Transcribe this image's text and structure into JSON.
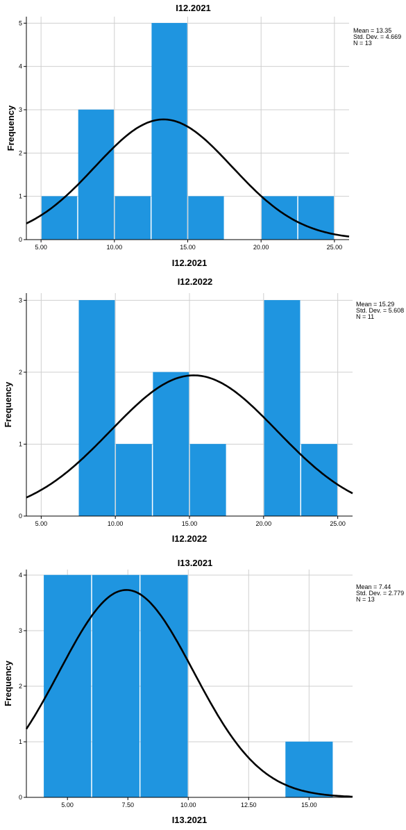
{
  "chart_data": [
    {
      "type": "bar",
      "title": "I12.2021",
      "xlabel": "I12.2021",
      "ylabel": "Frequency",
      "xlim": [
        4.0,
        26.0
      ],
      "ylim": [
        0,
        5.15
      ],
      "xticks": [
        5,
        10,
        15,
        20,
        25
      ],
      "xtick_labels": [
        "5.00",
        "10.00",
        "15.00",
        "20.00",
        "25.00"
      ],
      "yticks": [
        0,
        1,
        2,
        3,
        4,
        5
      ],
      "ytick_labels": [
        "0",
        "1",
        "2",
        "3",
        "4",
        "5"
      ],
      "bin_width": 2.5,
      "bins": [
        {
          "start": 5.0,
          "end": 7.5,
          "count": 1
        },
        {
          "start": 7.5,
          "end": 10.0,
          "count": 3
        },
        {
          "start": 10.0,
          "end": 12.5,
          "count": 1
        },
        {
          "start": 12.5,
          "end": 15.0,
          "count": 5
        },
        {
          "start": 15.0,
          "end": 17.5,
          "count": 1
        },
        {
          "start": 17.5,
          "end": 20.0,
          "count": 0
        },
        {
          "start": 20.0,
          "end": 22.5,
          "count": 1
        },
        {
          "start": 22.5,
          "end": 25.0,
          "count": 1
        }
      ],
      "normal_curve": {
        "mean": 13.35,
        "sd": 4.669,
        "n": 13
      },
      "stats_labels": [
        "Mean = 13.35",
        "Std. Dev. = 4.669",
        "N = 13"
      ],
      "grid": true,
      "bar_color": "#1f95e0"
    },
    {
      "type": "bar",
      "title": "I12.2022",
      "xlabel": "I12.2022",
      "ylabel": "Frequency",
      "xlim": [
        4.0,
        26.0
      ],
      "ylim": [
        0,
        3.1
      ],
      "xticks": [
        5,
        10,
        15,
        20,
        25
      ],
      "xtick_labels": [
        "5.00",
        "10.00",
        "15.00",
        "20.00",
        "25.00"
      ],
      "yticks": [
        0,
        1,
        2,
        3
      ],
      "ytick_labels": [
        "0",
        "1",
        "2",
        "3"
      ],
      "bin_width": 2.5,
      "bins": [
        {
          "start": 7.5,
          "end": 10.0,
          "count": 3
        },
        {
          "start": 10.0,
          "end": 12.5,
          "count": 1
        },
        {
          "start": 12.5,
          "end": 15.0,
          "count": 2
        },
        {
          "start": 15.0,
          "end": 17.5,
          "count": 1
        },
        {
          "start": 17.5,
          "end": 20.0,
          "count": 0
        },
        {
          "start": 20.0,
          "end": 22.5,
          "count": 3
        },
        {
          "start": 22.5,
          "end": 25.0,
          "count": 1
        }
      ],
      "normal_curve": {
        "mean": 15.29,
        "sd": 5.608,
        "n": 11
      },
      "stats_labels": [
        "Mean = 15.29",
        "Std. Dev. = 5.608",
        "N = 11"
      ],
      "grid": true,
      "bar_color": "#1f95e0"
    },
    {
      "type": "bar",
      "title": "I13.2021",
      "xlabel": "I13.2021",
      "ylabel": "Frequency",
      "xlim": [
        3.3,
        16.8
      ],
      "ylim": [
        0,
        4.1
      ],
      "xticks": [
        5,
        7.5,
        10,
        12.5,
        15
      ],
      "xtick_labels": [
        "5.00",
        "7.50",
        "10.00",
        "12.50",
        "15.00"
      ],
      "yticks": [
        0,
        1,
        2,
        3,
        4
      ],
      "ytick_labels": [
        "0",
        "1",
        "2",
        "3",
        "4"
      ],
      "bin_width": 2.0,
      "bins": [
        {
          "start": 4.0,
          "end": 6.0,
          "count": 4
        },
        {
          "start": 6.0,
          "end": 8.0,
          "count": 4
        },
        {
          "start": 8.0,
          "end": 10.0,
          "count": 4
        },
        {
          "start": 14.0,
          "end": 16.0,
          "count": 1
        }
      ],
      "normal_curve": {
        "mean": 7.44,
        "sd": 2.779,
        "n": 13
      },
      "stats_labels": [
        "Mean = 7.44",
        "Std. Dev. = 2.779",
        "N = 13"
      ],
      "grid": true,
      "bar_color": "#1f95e0"
    }
  ]
}
